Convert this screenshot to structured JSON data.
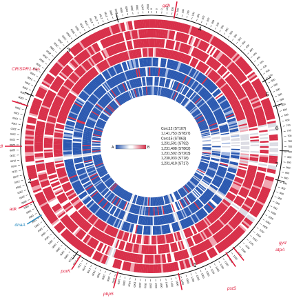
{
  "colors": {
    "red": "#d8304a",
    "blue": "#2a58b0",
    "light_gray": "#dcdce4",
    "gene_red": "#e01a3a",
    "gene_blue": "#2a8cc0",
    "outline": "#111111"
  },
  "segments": [
    {
      "label": "1",
      "start_deg": 105,
      "end_deg": 215
    },
    {
      "label": "2",
      "start_deg": 215,
      "end_deg": 293
    },
    {
      "label": "3",
      "start_deg": 293,
      "end_deg": 345
    },
    {
      "label": "4",
      "start_deg": 345,
      "end_deg": 60
    },
    {
      "label": "5",
      "start_deg": 60,
      "end_deg": 72
    },
    {
      "label": "6",
      "start_deg": 72,
      "end_deg": 92
    },
    {
      "label": "7",
      "start_deg": 92,
      "end_deg": 105
    }
  ],
  "rings": [
    {
      "name": "Corc12 (ST107)",
      "kind": "red"
    },
    {
      "name": "1,141,753 (ST827)",
      "kind": "red"
    },
    {
      "name": "Corc15 (ST863)",
      "kind": "red"
    },
    {
      "name": "1,231,501 (ST92)",
      "kind": "red"
    },
    {
      "name": "1,231,408 (ST862)",
      "kind": "blue"
    },
    {
      "name": "1,231,502 (ST203)",
      "kind": "blue"
    },
    {
      "name": "1,230,933 (ST18)",
      "kind": "blue"
    },
    {
      "name": "1,231,410 (ST17)",
      "kind": "blue"
    }
  ],
  "genes": [
    {
      "label": "gdh",
      "angle_deg": 10,
      "color": "gene_red"
    },
    {
      "label": "CRISPR1-cas",
      "angle_deg": 288,
      "color": "gene_red"
    },
    {
      "label": "ddl",
      "angle_deg": 270,
      "color": "gene_red"
    },
    {
      "label": "adk",
      "angle_deg": 245,
      "color": "gene_red"
    },
    {
      "label": "dnaA",
      "angle_deg": 238,
      "color": "gene_blue"
    },
    {
      "label": "purK",
      "angle_deg": 213,
      "color": "gene_red"
    },
    {
      "label": "pbp5",
      "angle_deg": 195,
      "color": "gene_red"
    },
    {
      "label": "pstS",
      "angle_deg": 168,
      "color": "gene_red"
    },
    {
      "label": "atpA",
      "angle_deg": 145,
      "color": "gene_red"
    },
    {
      "label": "gyd",
      "angle_deg": 141,
      "color": "gene_red"
    }
  ],
  "legend": {
    "left_label": "A",
    "right_label": "B",
    "entries": [
      "Corc12 (ST107)",
      "1,141,753 (ST827)",
      "Corc15 (ST863)",
      "1,231,501 (ST92)",
      "1,231,408 (ST862)",
      "1,231,502 (ST203)",
      "1,230,933 (ST18)",
      "1,231,410 (ST17)"
    ]
  }
}
